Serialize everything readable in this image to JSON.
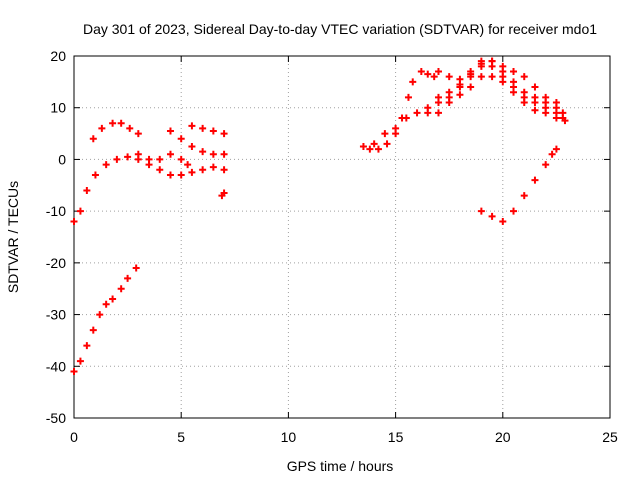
{
  "chart_data": {
    "type": "scatter",
    "title": "Day 301 of 2023, Sidereal Day-to-day VTEC variation (SDTVAR) for receiver mdo1",
    "xlabel": "GPS time / hours",
    "ylabel": "SDTVAR / TECUs",
    "xlim": [
      0,
      25
    ],
    "ylim": [
      -50,
      20
    ],
    "xticks": [
      0,
      5,
      10,
      15,
      20,
      25
    ],
    "yticks": [
      -50,
      -40,
      -30,
      -20,
      -10,
      0,
      10,
      20
    ],
    "grid": true,
    "marker": "+",
    "color": "#ff0000",
    "series": [
      {
        "name": "seg1",
        "points": [
          [
            0.0,
            -12
          ],
          [
            0.3,
            -10
          ],
          [
            0.6,
            -6
          ],
          [
            1.0,
            -3
          ],
          [
            1.5,
            -1
          ],
          [
            2.0,
            0
          ],
          [
            2.5,
            0.5
          ],
          [
            3.0,
            0
          ],
          [
            3.5,
            -1
          ],
          [
            4.0,
            -2
          ],
          [
            4.5,
            -3
          ],
          [
            5.0,
            -3
          ],
          [
            5.5,
            -2.5
          ],
          [
            6.0,
            -2
          ],
          [
            6.5,
            -1.5
          ],
          [
            7.0,
            -2
          ]
        ]
      },
      {
        "name": "seg2",
        "points": [
          [
            0.9,
            4
          ],
          [
            1.3,
            6
          ],
          [
            1.8,
            7
          ],
          [
            2.2,
            7
          ],
          [
            2.6,
            6
          ],
          [
            3.0,
            5
          ]
        ]
      },
      {
        "name": "seg3",
        "points": [
          [
            3.0,
            1
          ],
          [
            3.5,
            0
          ],
          [
            4.0,
            0
          ],
          [
            4.5,
            1
          ],
          [
            5.0,
            0
          ],
          [
            5.3,
            -1
          ]
        ]
      },
      {
        "name": "seg4",
        "points": [
          [
            4.5,
            5.5
          ],
          [
            5.0,
            4
          ],
          [
            5.5,
            2.5
          ],
          [
            6.0,
            1.5
          ],
          [
            6.5,
            1
          ],
          [
            7.0,
            1
          ]
        ]
      },
      {
        "name": "seg5",
        "points": [
          [
            5.5,
            6.5
          ],
          [
            6.0,
            6
          ],
          [
            6.5,
            5.5
          ],
          [
            7.0,
            5
          ]
        ]
      },
      {
        "name": "seg6",
        "points": [
          [
            6.9,
            -7
          ],
          [
            7.0,
            -6.5
          ]
        ]
      },
      {
        "name": "seg7",
        "points": [
          [
            0.0,
            -41
          ],
          [
            0.3,
            -39
          ],
          [
            0.6,
            -36
          ],
          [
            0.9,
            -33
          ],
          [
            1.2,
            -30
          ],
          [
            1.5,
            -28
          ],
          [
            1.8,
            -27
          ],
          [
            2.2,
            -25
          ],
          [
            2.5,
            -23
          ],
          [
            2.9,
            -21
          ]
        ]
      },
      {
        "name": "seg8",
        "points": [
          [
            13.5,
            2.5
          ],
          [
            13.8,
            2
          ],
          [
            14.2,
            2
          ],
          [
            14.6,
            3
          ],
          [
            15.0,
            5
          ],
          [
            15.3,
            8
          ],
          [
            15.6,
            12
          ]
        ]
      },
      {
        "name": "seg9",
        "points": [
          [
            14.0,
            3
          ],
          [
            14.5,
            5
          ],
          [
            15.0,
            6
          ],
          [
            15.5,
            8
          ],
          [
            16.0,
            9
          ],
          [
            16.5,
            10
          ],
          [
            17.0,
            11
          ],
          [
            17.5,
            12
          ],
          [
            18.0,
            14
          ],
          [
            18.5,
            16
          ],
          [
            19.0,
            18
          ],
          [
            19.5,
            19
          ],
          [
            20.0,
            17
          ],
          [
            20.5,
            15
          ],
          [
            21.0,
            13
          ],
          [
            21.5,
            12
          ],
          [
            22.0,
            11
          ],
          [
            22.5,
            10
          ],
          [
            22.8,
            9
          ]
        ]
      },
      {
        "name": "seg10",
        "points": [
          [
            16.5,
            9
          ],
          [
            17.0,
            12
          ],
          [
            17.5,
            13
          ],
          [
            18.0,
            14.5
          ],
          [
            18.5,
            16.5
          ],
          [
            19.0,
            19
          ],
          [
            19.5,
            18
          ],
          [
            20.0,
            16
          ],
          [
            20.5,
            14
          ],
          [
            21.0,
            12
          ],
          [
            21.5,
            11
          ],
          [
            22.0,
            10
          ],
          [
            22.5,
            9
          ],
          [
            22.8,
            8
          ]
        ]
      },
      {
        "name": "seg11",
        "points": [
          [
            17.0,
            9
          ],
          [
            17.5,
            11
          ],
          [
            18.0,
            12.5
          ],
          [
            18.5,
            14
          ],
          [
            19.0,
            16
          ],
          [
            19.5,
            16
          ],
          [
            20.0,
            15
          ],
          [
            20.5,
            13
          ],
          [
            21.0,
            11
          ],
          [
            21.5,
            9.5
          ],
          [
            22.0,
            9
          ],
          [
            22.5,
            8
          ],
          [
            22.9,
            7.5
          ]
        ]
      },
      {
        "name": "seg12",
        "points": [
          [
            16.2,
            17
          ],
          [
            16.5,
            16.5
          ],
          [
            16.8,
            16
          ]
        ]
      },
      {
        "name": "seg13",
        "points": [
          [
            17.0,
            17
          ],
          [
            17.5,
            16
          ],
          [
            18.0,
            15.5
          ],
          [
            18.5,
            17
          ],
          [
            19.0,
            18.5
          ],
          [
            19.5,
            19
          ],
          [
            20.0,
            18
          ],
          [
            20.5,
            17
          ],
          [
            21.0,
            16
          ],
          [
            21.5,
            14
          ],
          [
            22.0,
            12
          ],
          [
            22.5,
            11
          ]
        ]
      },
      {
        "name": "seg14",
        "points": [
          [
            15.8,
            15
          ]
        ]
      },
      {
        "name": "seg15",
        "points": [
          [
            19.0,
            -10
          ],
          [
            19.5,
            -11
          ],
          [
            20.0,
            -12
          ],
          [
            20.5,
            -10
          ],
          [
            21.0,
            -7
          ],
          [
            21.5,
            -4
          ],
          [
            22.0,
            -1
          ],
          [
            22.3,
            1
          ],
          [
            22.5,
            2
          ]
        ]
      }
    ]
  }
}
